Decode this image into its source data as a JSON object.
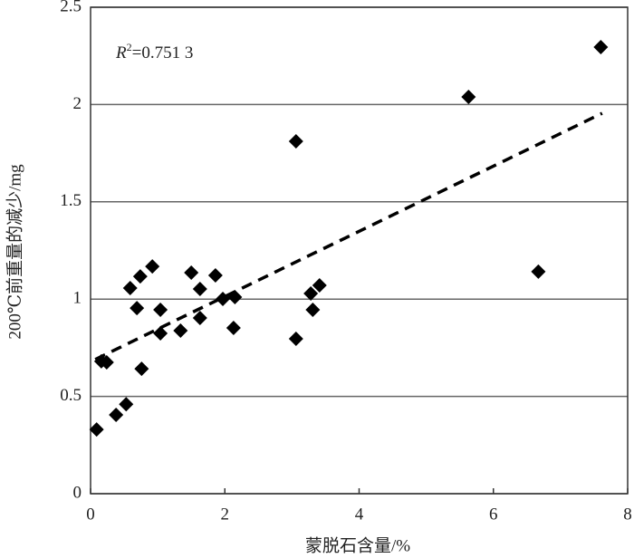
{
  "chart_data": {
    "type": "scatter",
    "xlabel": "蒙脱石含量/%",
    "ylabel": "200℃前重量的减少/mg",
    "annotation": {
      "symbol": "R",
      "superscript": "2",
      "text": "=0.751 3"
    },
    "x": [
      0.09,
      0.16,
      0.24,
      0.38,
      0.53,
      0.59,
      0.69,
      0.74,
      0.76,
      0.92,
      1.04,
      1.04,
      1.34,
      1.5,
      1.63,
      1.63,
      1.86,
      1.97,
      2.15,
      2.13,
      3.06,
      3.06,
      3.28,
      3.31,
      3.41,
      5.63,
      6.67,
      7.6
    ],
    "values": [
      0.33,
      0.68,
      0.675,
      0.405,
      0.46,
      1.057,
      0.954,
      1.117,
      0.642,
      1.168,
      0.945,
      0.824,
      0.838,
      1.136,
      1.052,
      0.903,
      1.122,
      1.001,
      1.01,
      0.852,
      1.811,
      0.796,
      1.029,
      0.945,
      1.071,
      2.039,
      1.141,
      2.295
    ],
    "color": "#000000",
    "trendline": {
      "x": [
        0.07,
        7.62
      ],
      "y": [
        0.69,
        1.955
      ]
    },
    "xlim": [
      0,
      8
    ],
    "xticks": [
      0,
      2,
      4,
      6,
      8
    ],
    "ylim": [
      0,
      2.5
    ],
    "yticks": [
      0,
      0.5,
      1,
      1.5,
      2,
      2.5
    ],
    "grid": true
  }
}
